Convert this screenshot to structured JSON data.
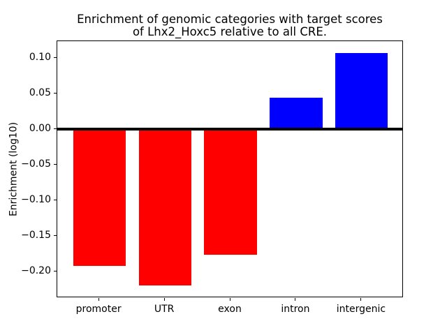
{
  "figure": {
    "title_line1": "Enrichment of genomic categories with target scores",
    "title_line2": "of Lhx2_Hoxc5 relative to all CRE.",
    "background_color": "#ffffff"
  },
  "chart_data": {
    "type": "bar",
    "title": "Enrichment of genomic categories with target scores\nof Lhx2_Hoxc5 relative to all CRE.",
    "xlabel": "",
    "ylabel": "Enrichment (log10)",
    "categories": [
      "promoter",
      "UTR",
      "exon",
      "intron",
      "intergenic"
    ],
    "values": [
      -0.192,
      -0.22,
      -0.177,
      0.044,
      0.107
    ],
    "bar_colors": [
      "#ff0000",
      "#ff0000",
      "#ff0000",
      "#0000ff",
      "#0000ff"
    ],
    "negative_color": "#ff0000",
    "positive_color": "#0000ff",
    "ylim": [
      -0.2372,
      0.1234
    ],
    "xlim": [
      -0.64,
      4.64
    ],
    "bar_width_fraction": 0.8,
    "yticks": [
      0.1,
      0.05,
      0.0,
      -0.05,
      -0.1,
      -0.15,
      -0.2
    ],
    "ytick_labels": [
      "0.10",
      "0.05",
      "0.00",
      "−0.05",
      "−0.10",
      "−0.15",
      "−0.20"
    ],
    "grid": false,
    "legend": null,
    "zero_line": true,
    "axis_color": "#000000"
  }
}
